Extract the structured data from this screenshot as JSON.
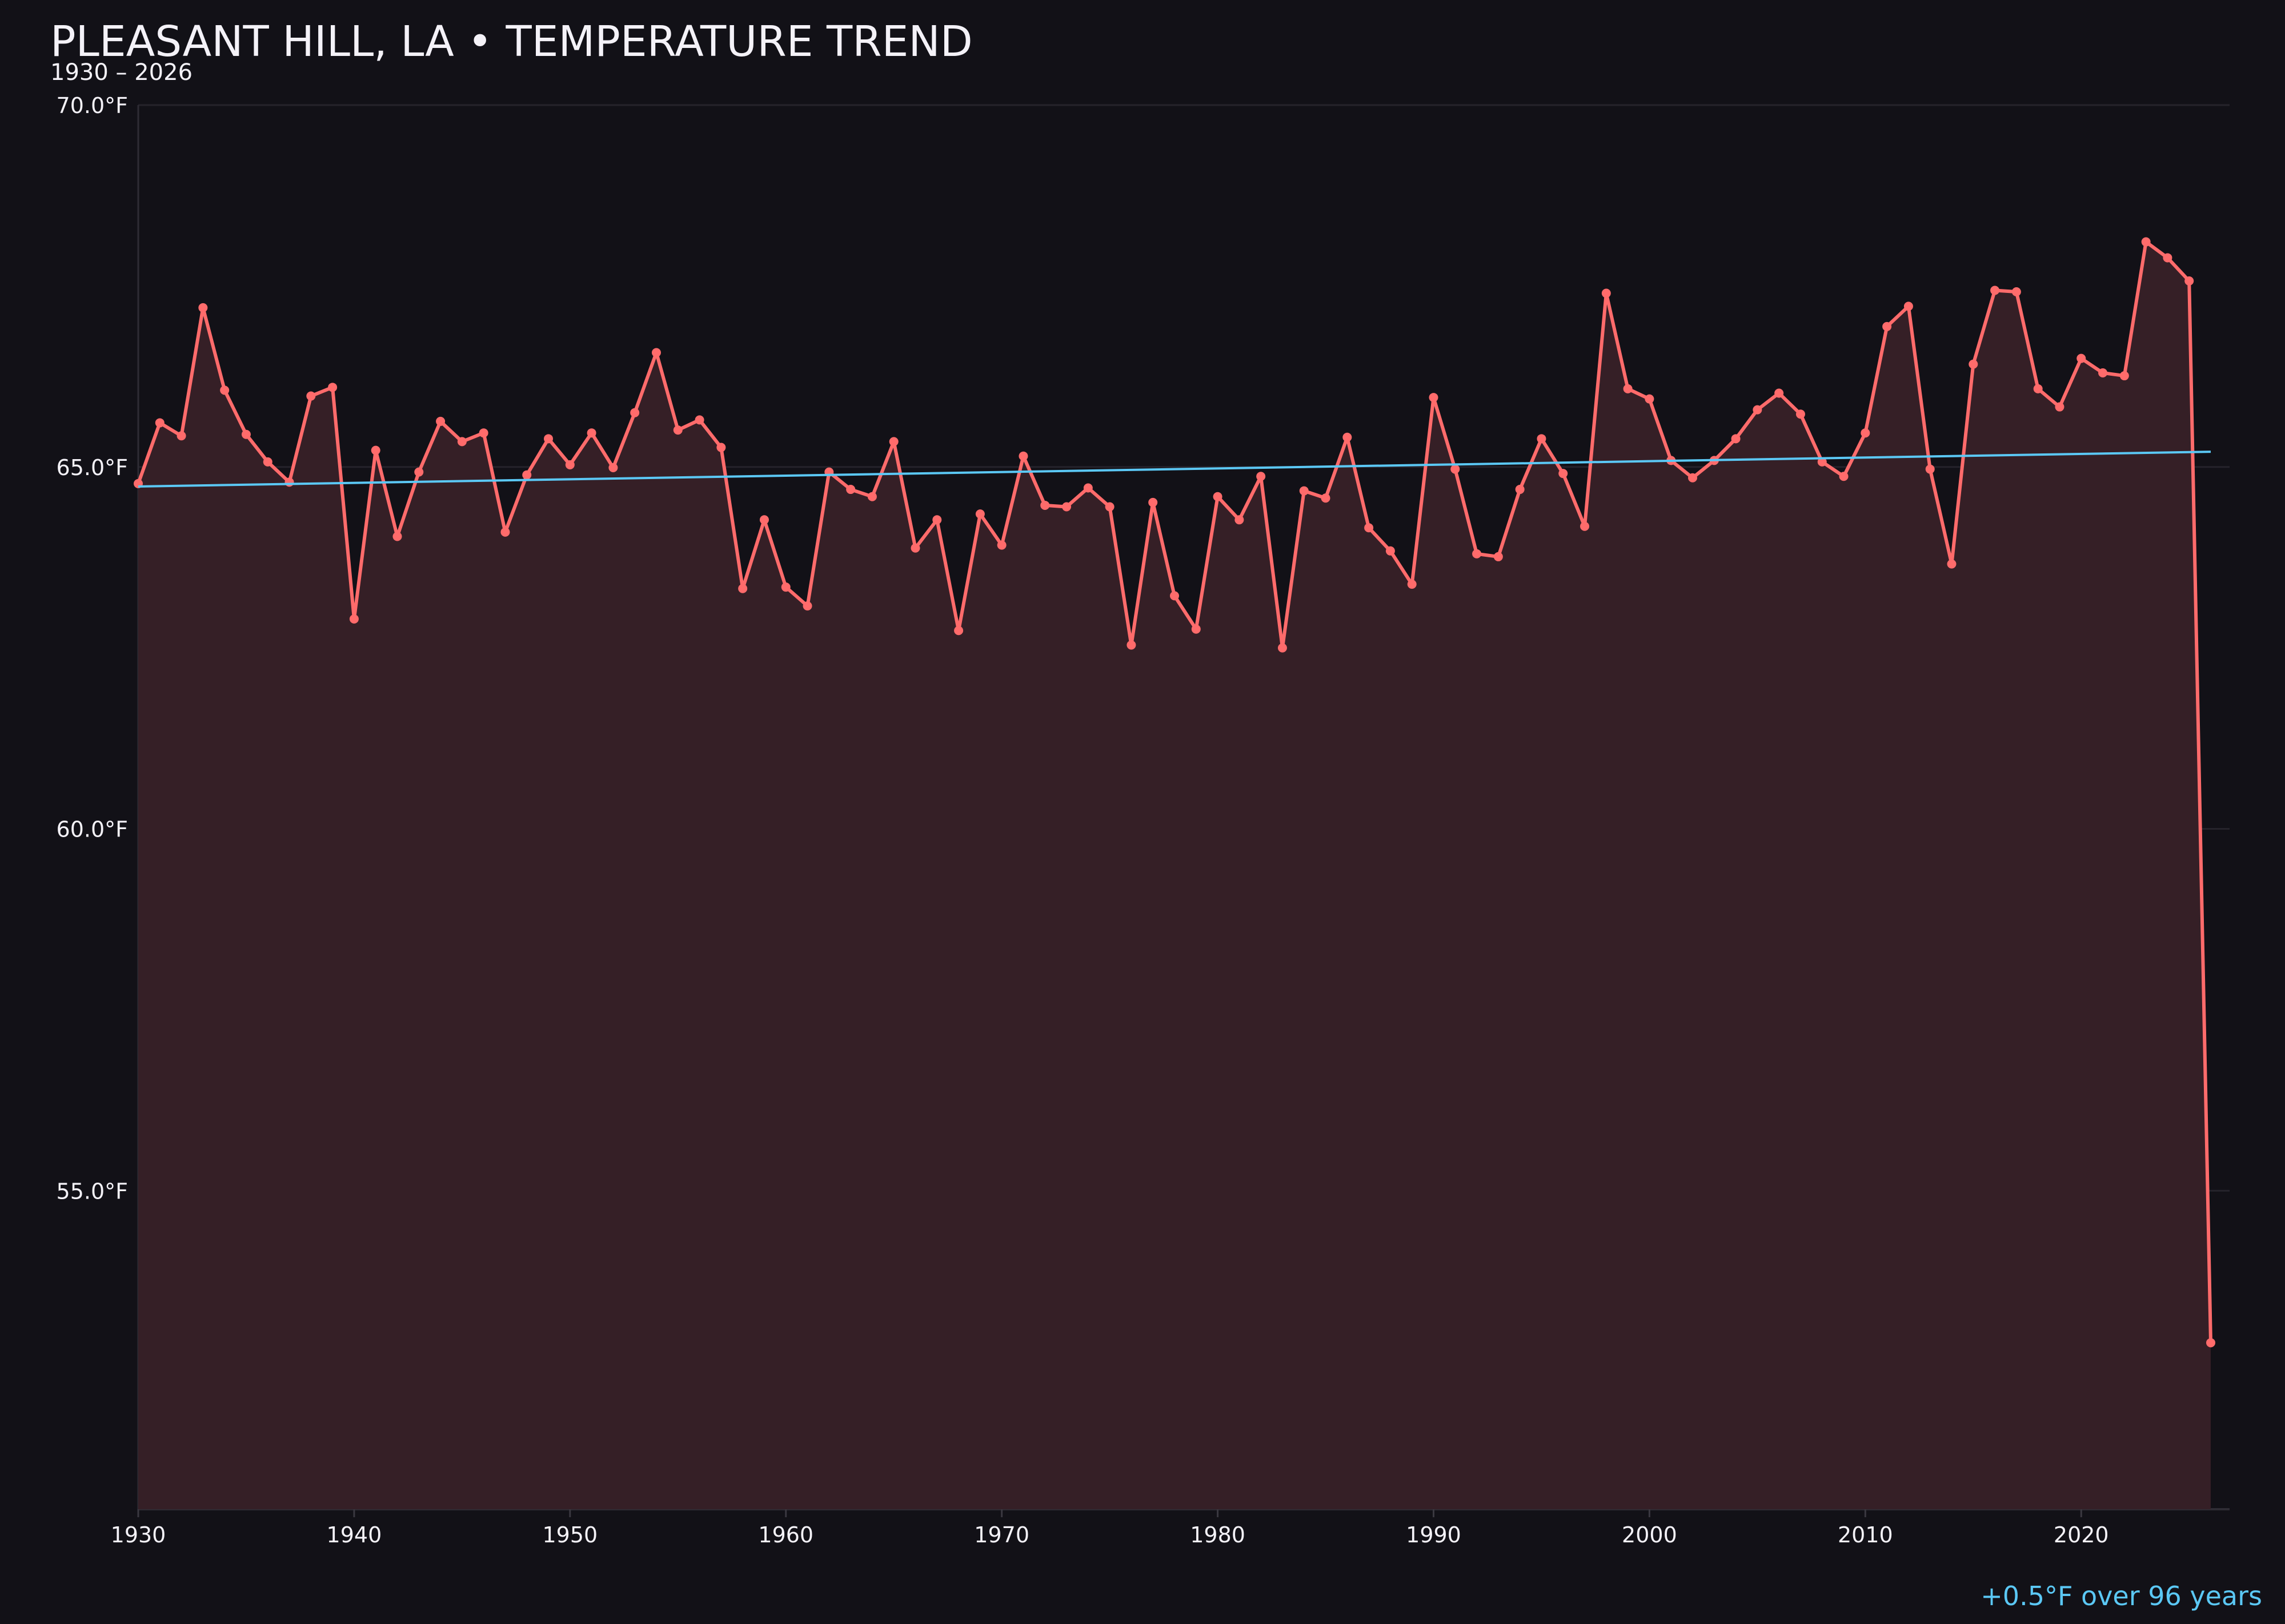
{
  "title": "PLEASANT HILL, LA • TEMPERATURE TREND",
  "subtitle": "1930 – 2026",
  "footer": "+0.5°F over 96 years",
  "colors": {
    "background": "#121117",
    "series": "#ff6b6b",
    "fill": "#351f26",
    "trend": "#5bc8f5",
    "grid": "#25232b"
  },
  "chart_data": {
    "type": "line",
    "title": "PLEASANT HILL, LA • TEMPERATURE TREND",
    "subtitle": "1930 – 2026",
    "xlim": [
      1930,
      2026
    ],
    "ylim": [
      50.6,
      70.0
    ],
    "grid": true,
    "x_ticks": [
      1930,
      1940,
      1950,
      1960,
      1970,
      1980,
      1990,
      2000,
      2010,
      2020
    ],
    "y_ticks": [
      {
        "value": 55,
        "label": "55.0°F"
      },
      {
        "value": 60,
        "label": "60.0°F"
      },
      {
        "value": 65,
        "label": "65.0°F"
      },
      {
        "value": 70,
        "label": "70.0°F"
      }
    ],
    "x": [
      1930,
      1931,
      1932,
      1933,
      1934,
      1935,
      1936,
      1937,
      1938,
      1939,
      1940,
      1941,
      1942,
      1943,
      1944,
      1945,
      1946,
      1947,
      1948,
      1949,
      1950,
      1951,
      1952,
      1953,
      1954,
      1955,
      1956,
      1957,
      1958,
      1959,
      1960,
      1961,
      1962,
      1963,
      1964,
      1965,
      1966,
      1967,
      1968,
      1969,
      1970,
      1971,
      1972,
      1973,
      1974,
      1975,
      1976,
      1977,
      1978,
      1979,
      1980,
      1981,
      1982,
      1983,
      1984,
      1985,
      1986,
      1987,
      1988,
      1989,
      1990,
      1991,
      1992,
      1993,
      1994,
      1995,
      1996,
      1997,
      1998,
      1999,
      2000,
      2001,
      2002,
      2003,
      2004,
      2005,
      2006,
      2007,
      2008,
      2009,
      2010,
      2011,
      2012,
      2013,
      2014,
      2015,
      2016,
      2017,
      2018,
      2019,
      2020,
      2021,
      2022,
      2023,
      2024,
      2025,
      2026
    ],
    "y": [
      64.77,
      65.61,
      65.43,
      67.2,
      66.06,
      65.45,
      65.07,
      64.79,
      65.98,
      66.1,
      62.9,
      65.23,
      64.04,
      64.93,
      65.63,
      65.35,
      65.47,
      64.1,
      64.89,
      65.39,
      65.03,
      65.47,
      64.99,
      65.75,
      66.58,
      65.51,
      65.65,
      65.27,
      63.32,
      64.27,
      63.34,
      63.08,
      64.93,
      64.69,
      64.59,
      65.35,
      63.88,
      64.27,
      62.74,
      64.35,
      63.92,
      65.15,
      64.47,
      64.45,
      64.71,
      64.45,
      62.54,
      64.51,
      63.22,
      62.76,
      64.59,
      64.27,
      64.87,
      62.5,
      64.67,
      64.57,
      65.41,
      64.16,
      63.84,
      63.38,
      65.96,
      64.97,
      63.8,
      63.76,
      64.69,
      65.39,
      64.91,
      64.18,
      67.4,
      66.08,
      65.94,
      65.09,
      64.85,
      65.09,
      65.39,
      65.79,
      66.02,
      65.73,
      65.07,
      64.87,
      65.47,
      66.94,
      67.22,
      64.97,
      63.66,
      66.42,
      67.44,
      67.42,
      66.08,
      65.83,
      66.5,
      66.3,
      66.26,
      68.11,
      67.89,
      67.57,
      52.9
    ],
    "trend": {
      "x": [
        1930,
        2026
      ],
      "y": [
        64.73,
        65.21
      ]
    },
    "annotation": "+0.5°F over 96 years"
  }
}
